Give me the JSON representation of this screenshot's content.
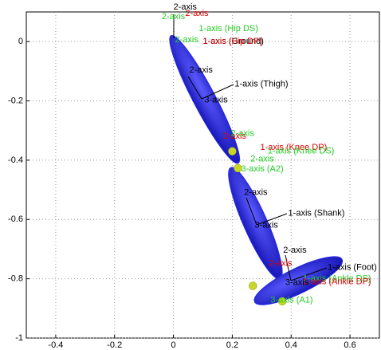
{
  "chart_data": {
    "type": "scatter",
    "xlim": [
      -0.5,
      0.7
    ],
    "ylim": [
      -1,
      0.1
    ],
    "xticks": [
      -0.4,
      -0.2,
      0,
      0.2,
      0.4,
      0.6
    ],
    "yticks": [
      -1,
      -0.8,
      -0.6,
      -0.4,
      -0.2,
      0
    ],
    "grid": true,
    "segments": [
      {
        "x": [
          -0.008,
          0.22
        ],
        "y": [
          0.02,
          -0.41
        ],
        "width": 0.075,
        "color": "#2424e8"
      },
      {
        "x": [
          0.195,
          0.362
        ],
        "y": [
          -0.425,
          -0.8
        ],
        "width": 0.08,
        "color": "#2424e8"
      },
      {
        "x": [
          0.276,
          0.573
        ],
        "y": [
          -0.878,
          -0.735
        ],
        "width": 0.085,
        "color": "#2424e8"
      }
    ],
    "points": {
      "color": "#c8d628",
      "x": [
        0.2,
        0.219,
        0.27,
        0.37
      ],
      "y": [
        -0.37,
        -0.427,
        -0.824,
        -0.876
      ]
    },
    "annotations": [
      {
        "text": "2-axis",
        "x": 0,
        "y": 0.116,
        "color": "#000000"
      },
      {
        "text": "2-axis",
        "x": -0.04,
        "y": 0.084,
        "color": "#22cc22"
      },
      {
        "text": "2-axis",
        "x": 0.04,
        "y": 0.094,
        "color": "#dd0000"
      },
      {
        "text": "1-axis (Hip DS)",
        "x": 0.086,
        "y": 0.043,
        "color": "#22cc22"
      },
      {
        "text": "2-axis",
        "x": 0.005,
        "y": 0.005,
        "color": "#22cc22"
      },
      {
        "text": "1-axis (Ground)",
        "x": 0.1,
        "y": 0.0,
        "color": "#000000"
      },
      {
        "text": "1-axis (Hip DP)",
        "x": 0.1,
        "y": 0.0,
        "color": "#dd0000"
      },
      {
        "text": "2-axis",
        "x": 0.054,
        "y": -0.097,
        "color": "#000000"
      },
      {
        "text": "1-axis (Thigh)",
        "x": 0.208,
        "y": -0.143,
        "color": "#000000"
      },
      {
        "text": "3-axis",
        "x": 0.105,
        "y": -0.197,
        "color": "#000000"
      },
      {
        "text": "2-axis",
        "x": 0.168,
        "y": -0.32,
        "color": "#dd0000"
      },
      {
        "text": "2-axis",
        "x": 0.195,
        "y": -0.31,
        "color": "#22cc22"
      },
      {
        "text": "1-axis (Knee DP)",
        "x": 0.295,
        "y": -0.357,
        "color": "#dd0000"
      },
      {
        "text": "1-axis (Knee DS)",
        "x": 0.32,
        "y": -0.37,
        "color": "#22cc22"
      },
      {
        "text": "2-axis",
        "x": 0.262,
        "y": -0.397,
        "color": "#22cc22"
      },
      {
        "text": "3-axis (A2)",
        "x": 0.23,
        "y": -0.43,
        "color": "#22cc22"
      },
      {
        "text": "2-axis",
        "x": 0.24,
        "y": -0.51,
        "color": "#000000"
      },
      {
        "text": "1-axis (Shank)",
        "x": 0.39,
        "y": -0.58,
        "color": "#000000"
      },
      {
        "text": "3-axis",
        "x": 0.276,
        "y": -0.62,
        "color": "#000000"
      },
      {
        "text": "2-axis",
        "x": 0.373,
        "y": -0.705,
        "color": "#000000"
      },
      {
        "text": "1-axis (Foot)",
        "x": 0.524,
        "y": -0.762,
        "color": "#000000"
      },
      {
        "text": "2-axis",
        "x": 0.324,
        "y": -0.749,
        "color": "#dd0000"
      },
      {
        "text": "1-axis (Ankle DS)",
        "x": 0.44,
        "y": -0.8,
        "color": "#22cc22"
      },
      {
        "text": "1-axis (Ankle DP)",
        "x": 0.44,
        "y": -0.81,
        "color": "#dd0000"
      },
      {
        "text": "3-axis",
        "x": 0.38,
        "y": -0.814,
        "color": "#000000"
      },
      {
        "text": "3-axis (A1)",
        "x": 0.33,
        "y": -0.873,
        "color": "#22cc22"
      }
    ]
  }
}
